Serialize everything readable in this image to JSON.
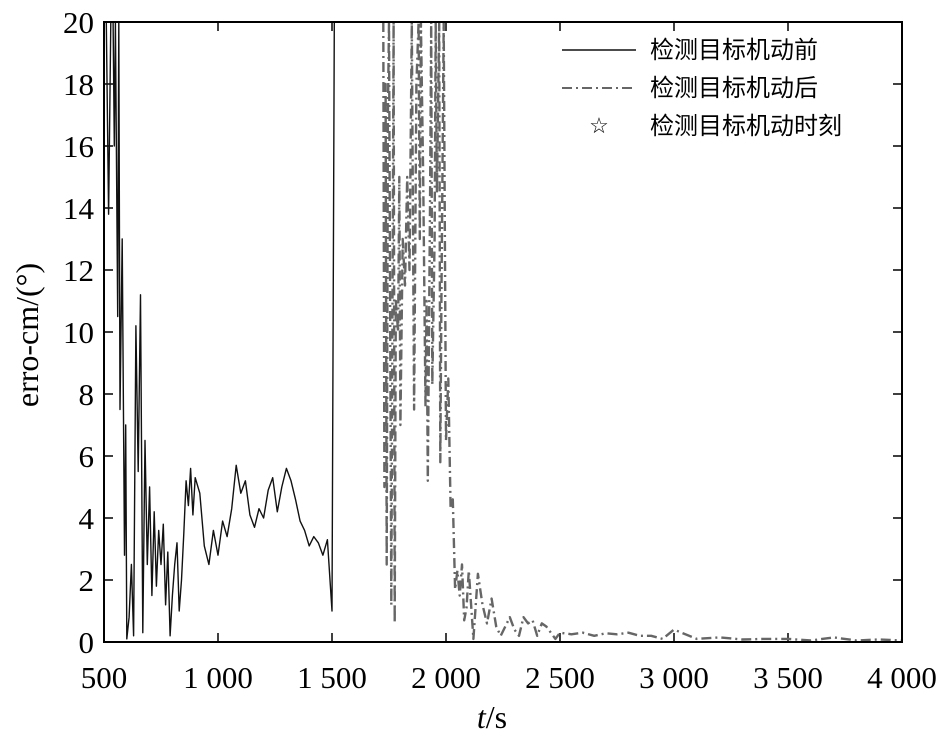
{
  "chart_data": {
    "type": "line",
    "xlabel_italic": "t",
    "xlabel_unit": "/s",
    "ylabel": "erro-cm/(°)",
    "xlim": [
      500,
      4000
    ],
    "ylim": [
      0,
      20
    ],
    "x_ticks": [
      500,
      1000,
      1500,
      2000,
      2500,
      3000,
      3500,
      4000
    ],
    "x_tick_labels": [
      "500",
      "1 000",
      "1 500",
      "2 000",
      "2 500",
      "3 000",
      "3 500",
      "4 000"
    ],
    "y_ticks": [
      0,
      2,
      4,
      6,
      8,
      10,
      12,
      14,
      16,
      18,
      20
    ],
    "y_tick_labels": [
      "0",
      "2",
      "4",
      "6",
      "8",
      "10",
      "12",
      "14",
      "16",
      "18",
      "20"
    ],
    "legend_position": "top-right",
    "series": [
      {
        "name": "检测目标机动前",
        "style": "solid",
        "color": "#111111",
        "x": [
          510,
          520,
          530,
          540,
          545,
          550,
          560,
          565,
          570,
          580,
          590,
          595,
          600,
          610,
          620,
          630,
          640,
          650,
          660,
          670,
          680,
          690,
          700,
          710,
          720,
          730,
          740,
          750,
          760,
          770,
          780,
          790,
          800,
          810,
          820,
          830,
          840,
          850,
          860,
          870,
          880,
          890,
          900,
          920,
          940,
          960,
          980,
          1000,
          1020,
          1040,
          1060,
          1080,
          1100,
          1120,
          1140,
          1160,
          1180,
          1200,
          1220,
          1240,
          1260,
          1280,
          1300,
          1320,
          1340,
          1360,
          1380,
          1400,
          1420,
          1440,
          1460,
          1480,
          1500,
          1510,
          1515,
          1520,
          1522,
          1525
        ],
        "y": [
          20,
          13.8,
          20,
          20,
          16,
          20,
          10.5,
          20,
          7.5,
          13,
          2.8,
          7,
          0.1,
          0.8,
          2.5,
          0.2,
          10.2,
          5.5,
          11.2,
          0.3,
          6.5,
          2.5,
          5,
          1.5,
          4.2,
          1.8,
          3.6,
          2.5,
          3.8,
          1.2,
          2.9,
          0.2,
          1.5,
          2.5,
          3.2,
          1,
          2,
          3.5,
          5.2,
          4.4,
          5.6,
          4.1,
          5.3,
          4.8,
          3.1,
          2.5,
          3.6,
          2.8,
          3.9,
          3.4,
          4.3,
          5.7,
          4.8,
          5.2,
          4.1,
          3.7,
          4.3,
          4.0,
          4.9,
          5.3,
          4.2,
          5.0,
          5.6,
          5.2,
          4.6,
          3.9,
          3.6,
          3.1,
          3.4,
          3.2,
          2.8,
          3.3,
          1.0,
          20,
          20,
          20,
          20,
          20
        ]
      },
      {
        "name": "检测目标机动后",
        "style": "dash-dot",
        "color": "#666666",
        "x": [
          1725,
          1730,
          1735,
          1740,
          1745,
          1750,
          1760,
          1770,
          1775,
          1780,
          1790,
          1795,
          1800,
          1810,
          1820,
          1830,
          1840,
          1850,
          1860,
          1870,
          1880,
          1885,
          1890,
          1900,
          1910,
          1915,
          1920,
          1930,
          1935,
          1940,
          1950,
          1955,
          1960,
          1970,
          1975,
          1980,
          1990,
          2000,
          2010,
          2020,
          2030,
          2040,
          2050,
          2060,
          2070,
          2080,
          2090,
          2100,
          2120,
          2140,
          2160,
          2180,
          2200,
          2220,
          2240,
          2260,
          2280,
          2300,
          2320,
          2340,
          2360,
          2380,
          2400,
          2420,
          2440,
          2460,
          2480,
          2500,
          2550,
          2600,
          2650,
          2700,
          2750,
          2800,
          2850,
          2900,
          2950,
          3000,
          3100,
          3200,
          3300,
          3400,
          3500,
          3600,
          3700,
          3800,
          3900,
          4000
        ],
        "y": [
          20,
          5,
          18,
          2.5,
          17,
          20,
          1.2,
          20,
          0.6,
          11,
          10,
          15,
          7,
          13,
          11.5,
          15,
          12,
          20,
          7.5,
          18,
          20,
          13,
          20,
          15,
          7.6,
          11,
          5.2,
          14,
          20,
          8.3,
          13,
          20,
          14.5,
          20,
          5.8,
          11,
          20,
          6.5,
          8.5,
          4.3,
          4.6,
          1.7,
          2.3,
          1.5,
          2.5,
          0.7,
          1.1,
          2.3,
          0.1,
          2.2,
          1.2,
          0.6,
          1.4,
          0.5,
          0.2,
          0.5,
          0.8,
          0.4,
          0.2,
          0.8,
          0.6,
          0.7,
          0.2,
          0.6,
          0.5,
          0.3,
          0.1,
          0.3,
          0.25,
          0.3,
          0.2,
          0.28,
          0.25,
          0.3,
          0.2,
          0.2,
          0.1,
          0.4,
          0.1,
          0.15,
          0.08,
          0.1,
          0.1,
          0.05,
          0.15,
          0.05,
          0.08,
          0.05
        ]
      }
    ],
    "markers": {
      "name": "检测目标机动时刻",
      "symbol": "☆",
      "points": []
    }
  }
}
